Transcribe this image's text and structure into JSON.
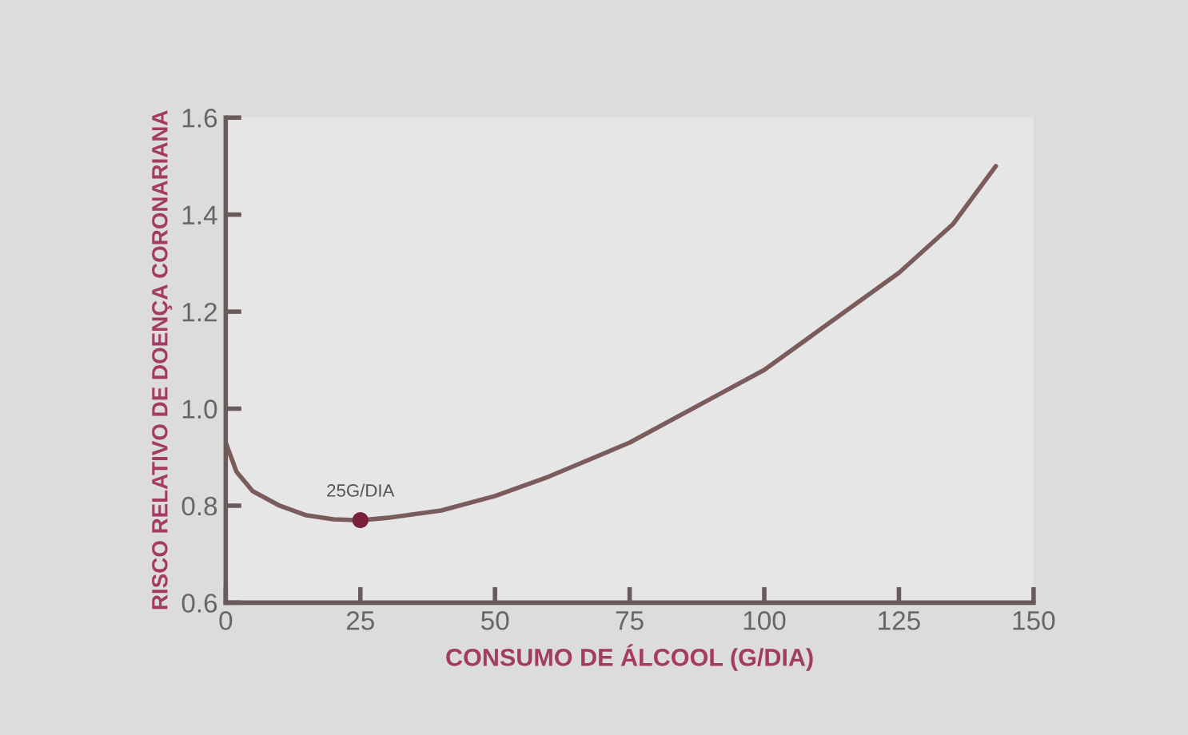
{
  "chart_data": {
    "type": "line",
    "xlabel": "CONSUMO DE ÁLCOOL (G/DIA)",
    "ylabel": "RISCO RELATIVO DE DOENÇA CORONARIANA",
    "x": [
      0,
      2,
      5,
      10,
      15,
      20,
      25,
      30,
      40,
      50,
      60,
      75,
      90,
      100,
      110,
      125,
      135,
      143
    ],
    "series": [
      {
        "color": "#7a5c5c",
        "values": [
          0.93,
          0.87,
          0.83,
          0.8,
          0.78,
          0.772,
          0.77,
          0.775,
          0.79,
          0.82,
          0.86,
          0.93,
          1.02,
          1.08,
          1.16,
          1.28,
          1.38,
          1.5
        ]
      },
      {
        "type": "scatter",
        "color": "#7a1f3a",
        "x": [
          25
        ],
        "values": [
          0.77
        ]
      }
    ],
    "annotations": [
      {
        "text": "25G/DIA",
        "x": 25,
        "y": 0.77
      }
    ],
    "xlim": [
      0,
      150
    ],
    "ylim": [
      0.6,
      1.6
    ],
    "xticks": [
      0,
      25,
      50,
      75,
      100,
      125,
      150
    ],
    "yticks": [
      0.6,
      0.8,
      {
        "value": 1,
        "label": "1.0"
      },
      1.2,
      1.4,
      1.6
    ],
    "grid": false,
    "legend": false
  }
}
